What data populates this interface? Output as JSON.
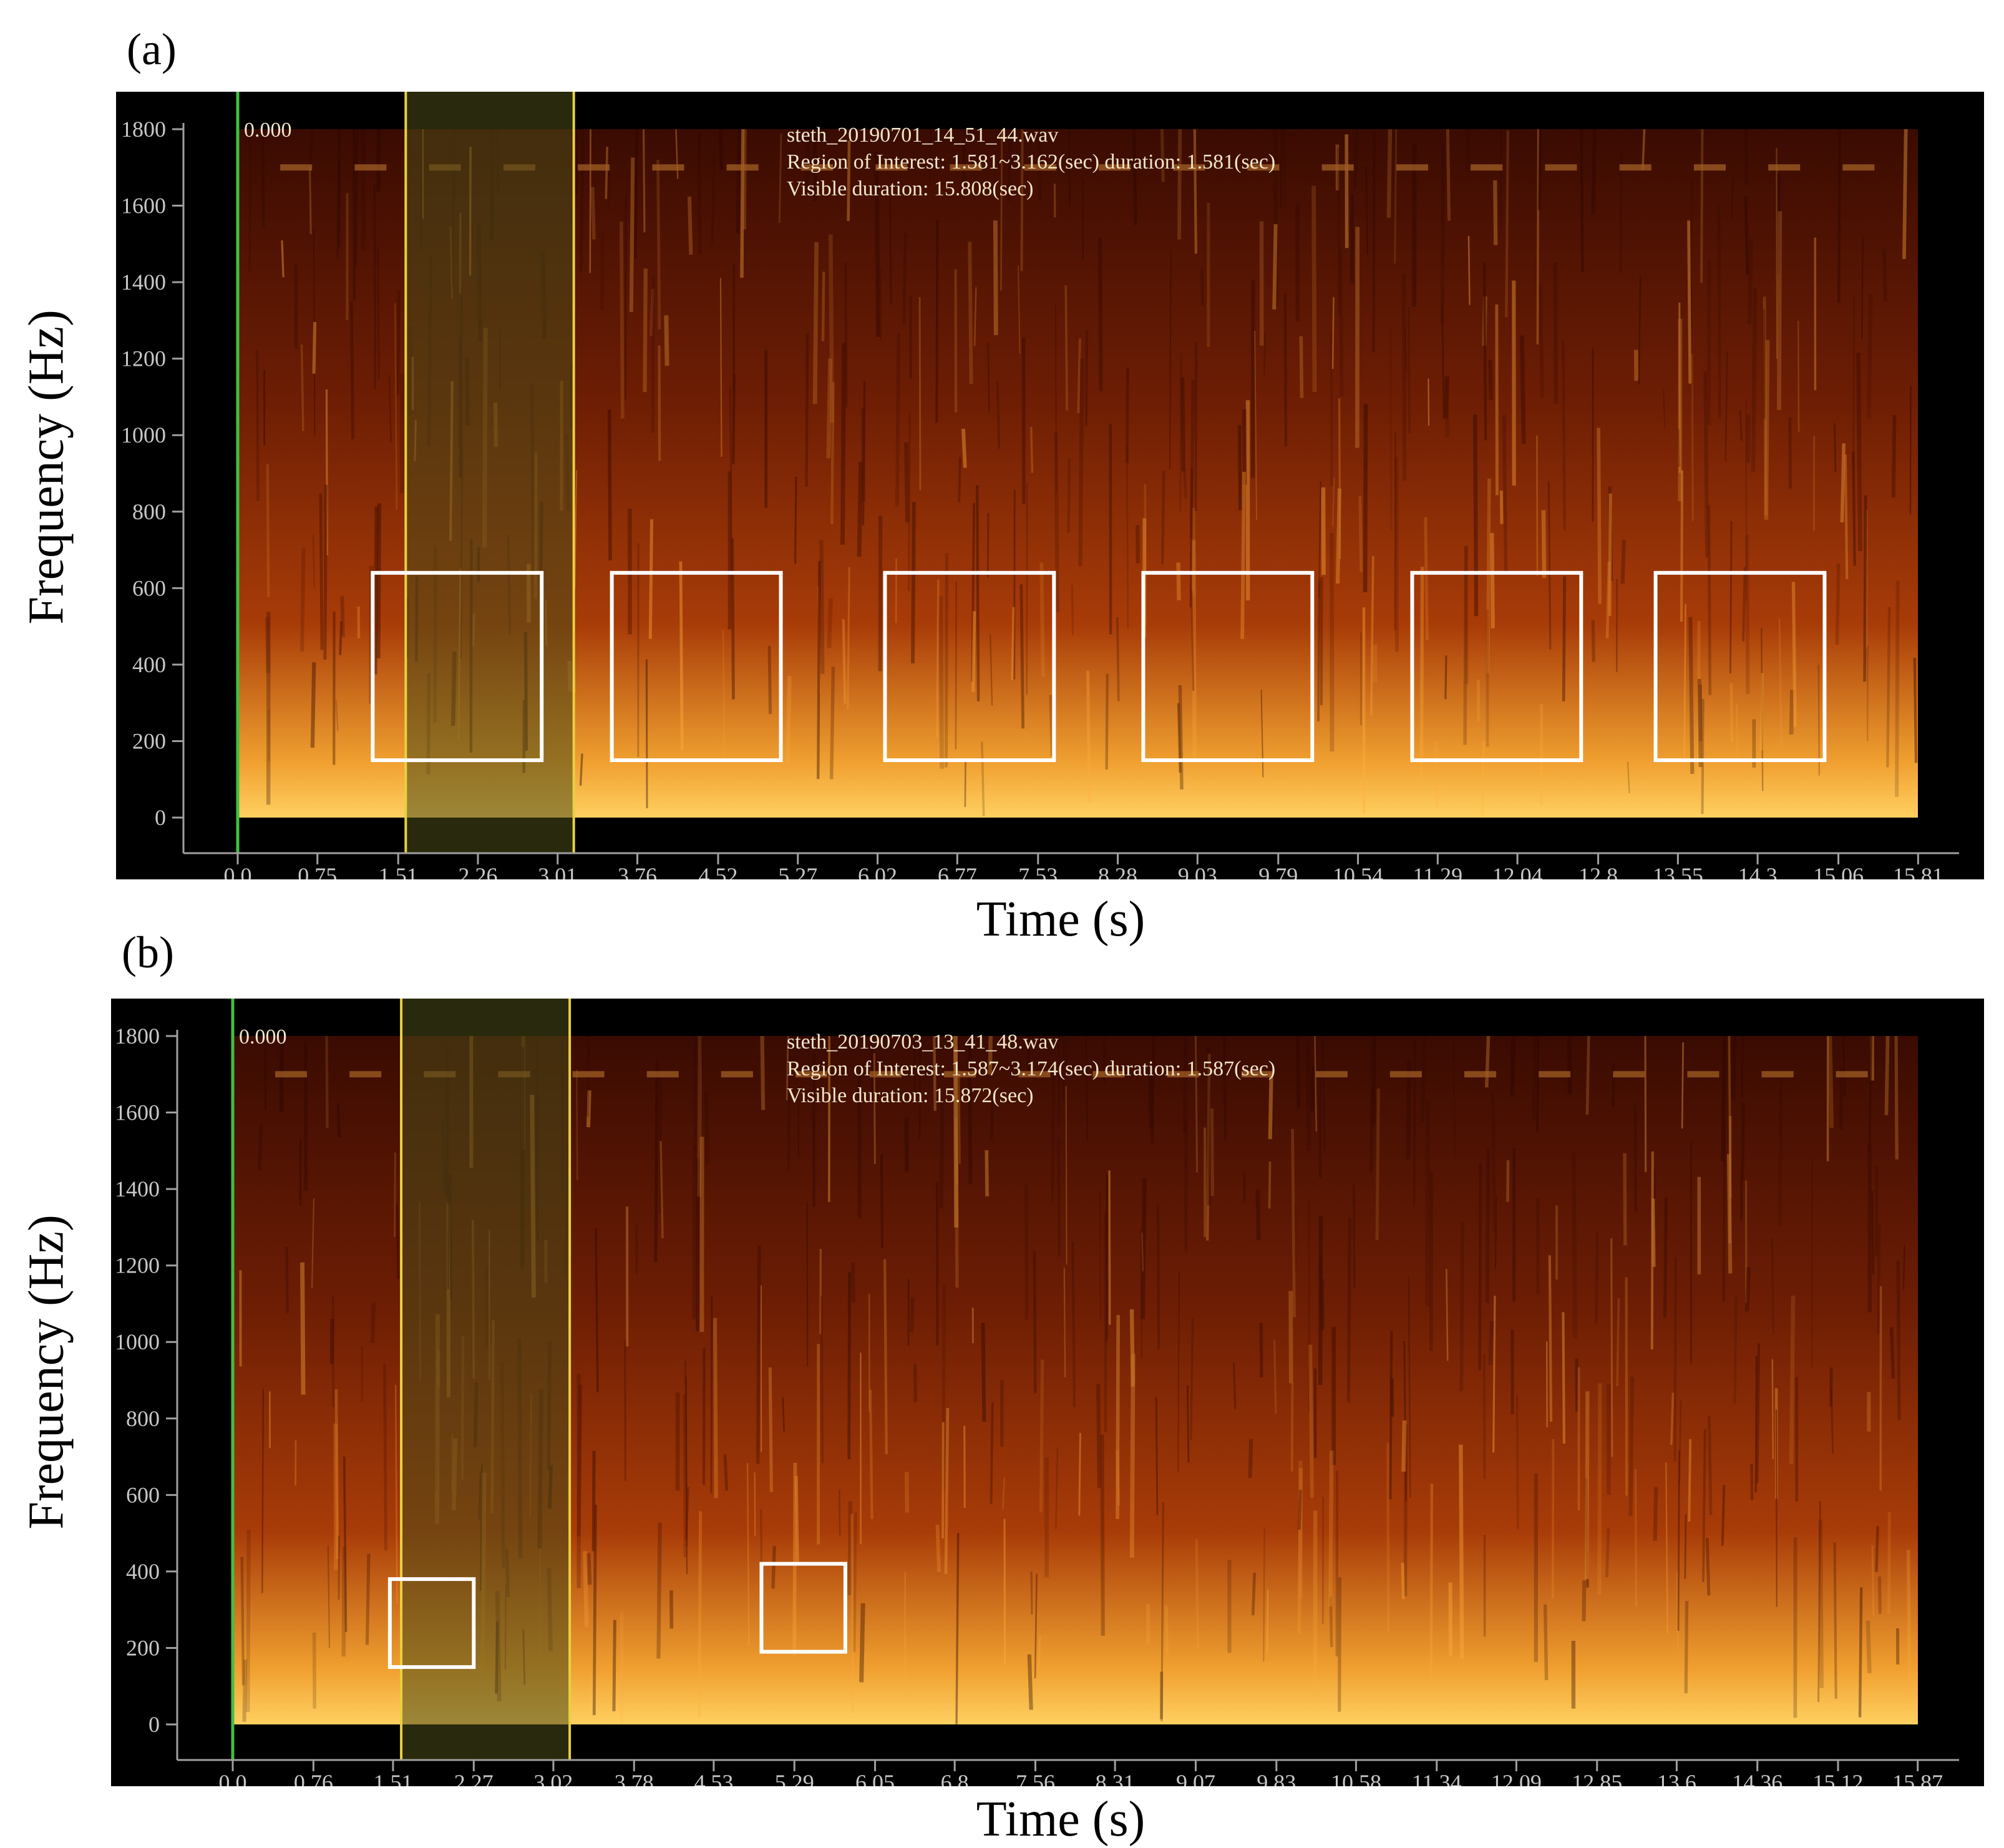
{
  "colors": {
    "background": "#000000",
    "spec_dark": "#3a0b02",
    "spec_mid": "#a83c08",
    "spec_bright": "#ffd060",
    "roi_line": "#e8d040",
    "roi_fill": "#4a4a18",
    "cursor": "#40c040",
    "box": "#ffffff",
    "tick_text": "#c8c8c8",
    "info_text": "#f2e6c8"
  },
  "chart_data": [
    {
      "type": "heatmap",
      "panel_label": "(a)",
      "xlabel": "Time (s)",
      "ylabel": "Frequency (Hz)",
      "ylim": [
        0,
        1800
      ],
      "xlim": [
        0,
        15.808
      ],
      "y_ticks": [
        "1800",
        "1600",
        "1400",
        "1200",
        "1000",
        "800",
        "600",
        "400",
        "200",
        "0"
      ],
      "x_ticks": [
        "0.0",
        "0.75",
        "1.51",
        "2.26",
        "3.01",
        "3.76",
        "4.52",
        "5.27",
        "6.02",
        "6.77",
        "7.53",
        "8.28",
        "9.03",
        "9.79",
        "10.54",
        "11.29",
        "12.04",
        "12.8",
        "13.55",
        "14.3",
        "15.06",
        "15.81"
      ],
      "cursor_label": "0.000",
      "info_lines": [
        "steth_20190701_14_51_44.wav",
        "Region of Interest: 1.581~3.162(sec) duration: 1.581(sec)",
        "Visible duration: 15.808(sec)"
      ],
      "roi": [
        1.581,
        3.162
      ],
      "boxes": [
        {
          "t0": 1.27,
          "t1": 2.86,
          "f0": 150,
          "f1": 640
        },
        {
          "t0": 3.52,
          "t1": 5.11,
          "f0": 150,
          "f1": 640
        },
        {
          "t0": 6.09,
          "t1": 7.68,
          "f0": 150,
          "f1": 640
        },
        {
          "t0": 8.52,
          "t1": 10.11,
          "f0": 150,
          "f1": 640
        },
        {
          "t0": 11.05,
          "t1": 12.64,
          "f0": 150,
          "f1": 640
        },
        {
          "t0": 13.34,
          "t1": 14.93,
          "f0": 150,
          "f1": 640
        }
      ]
    },
    {
      "type": "heatmap",
      "panel_label": "(b)",
      "xlabel": "Time (s)",
      "ylabel": "Frequency (Hz)",
      "ylim": [
        0,
        1800
      ],
      "xlim": [
        0,
        15.872
      ],
      "y_ticks": [
        "1800",
        "1600",
        "1400",
        "1200",
        "1000",
        "800",
        "600",
        "400",
        "200",
        "0"
      ],
      "x_ticks": [
        "0.0",
        "0.76",
        "1.51",
        "2.27",
        "3.02",
        "3.78",
        "4.53",
        "5.29",
        "6.05",
        "6.8",
        "7.56",
        "8.31",
        "9.07",
        "9.83",
        "10.58",
        "11.34",
        "12.09",
        "12.85",
        "13.6",
        "14.36",
        "15.12",
        "15.87"
      ],
      "cursor_label": "0.000",
      "info_lines": [
        "steth_20190703_13_41_48.wav",
        "Region of Interest: 1.587~3.174(sec) duration: 1.587(sec)",
        "Visible duration: 15.872(sec)"
      ],
      "roi": [
        1.587,
        3.174
      ],
      "boxes": [
        {
          "t0": 1.48,
          "t1": 2.27,
          "f0": 150,
          "f1": 380
        },
        {
          "t0": 4.98,
          "t1": 5.77,
          "f0": 190,
          "f1": 420
        }
      ]
    }
  ]
}
